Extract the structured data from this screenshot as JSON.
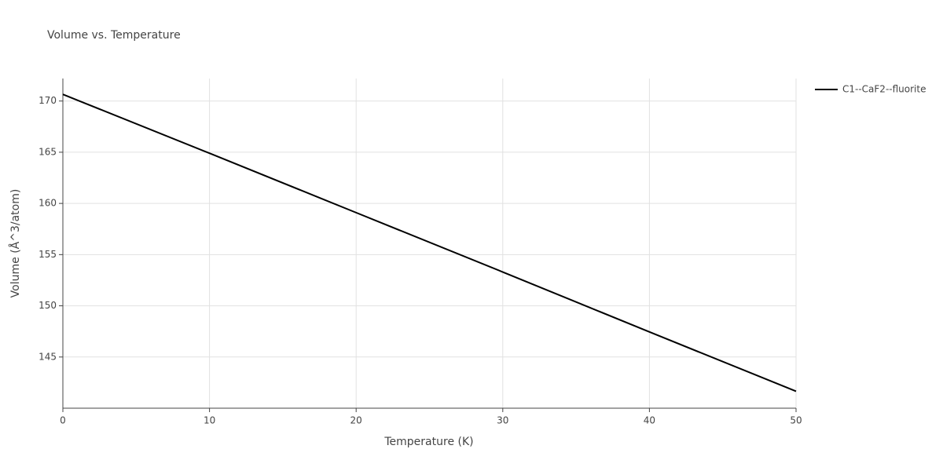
{
  "chart_data": {
    "type": "line",
    "title": "Volume vs. Temperature",
    "x_label": "Temperature (K)",
    "y_label": "Volume (Å^3/atom)",
    "x": [
      0,
      10,
      20,
      30,
      40,
      50
    ],
    "series": [
      {
        "name": "C1--CaF2--fluorite",
        "color": "#000000",
        "values": [
          170.65,
          164.9,
          159.1,
          153.3,
          147.45,
          141.65
        ]
      }
    ],
    "xlim": [
      0,
      50
    ],
    "xticks": [
      0,
      10,
      20,
      30,
      40,
      50
    ],
    "ylim": [
      140,
      172.2
    ],
    "yticks": [
      145,
      150,
      155,
      160,
      165,
      170
    ],
    "grid": true,
    "legend": "top-right"
  }
}
